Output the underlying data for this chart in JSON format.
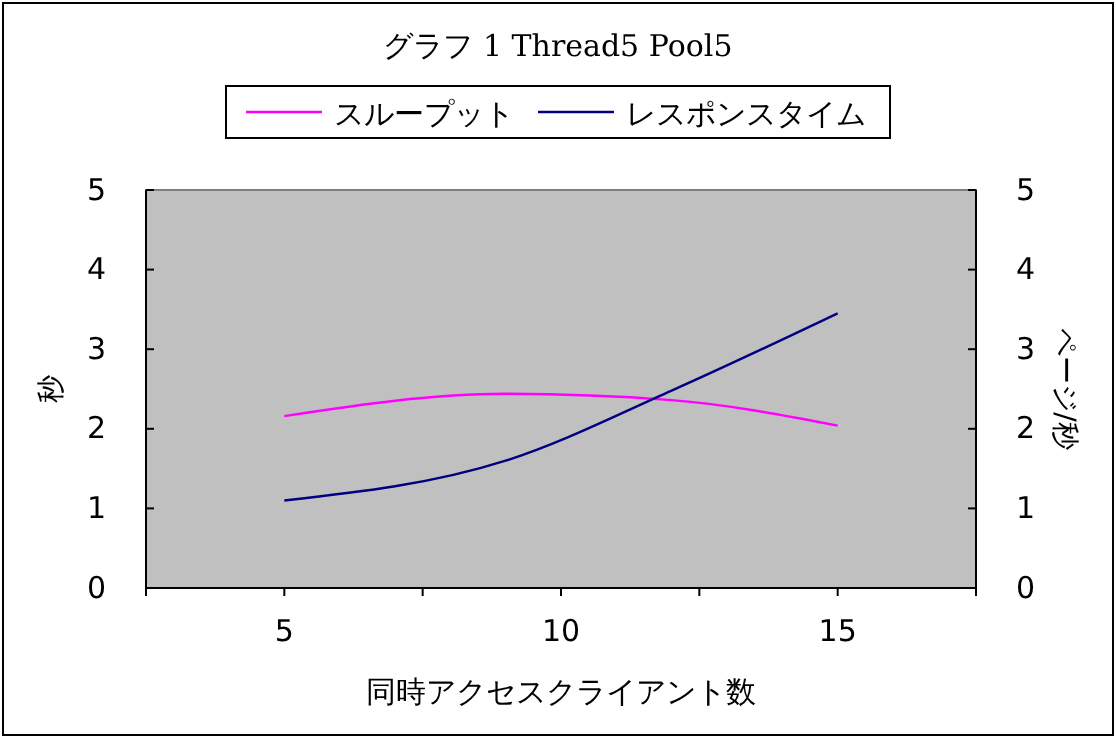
{
  "chart_data": {
    "type": "line",
    "title": "グラフ 1 Thread5 Pool5",
    "xlabel": "同時アクセスクライアント数",
    "ylabel": "秒",
    "y2label": "ページ/秒",
    "x": [
      5,
      9,
      12,
      15
    ],
    "series": [
      {
        "name": "スループット",
        "color": "#ff00ff",
        "values": [
          2.16,
          2.44,
          2.36,
          2.04
        ]
      },
      {
        "name": "レスポンスタイム",
        "color": "#000080",
        "values": [
          1.1,
          1.6,
          2.48,
          3.45
        ]
      }
    ],
    "xlim": [
      2.5,
      17.5
    ],
    "xticks": [
      {
        "value": 2.5,
        "label": null
      },
      5,
      {
        "value": 7.5,
        "label": null
      },
      10,
      {
        "value": 12.5,
        "label": null
      },
      15,
      {
        "value": 17.5,
        "label": null
      }
    ],
    "ylim": [
      0,
      5
    ],
    "yticks": [
      0,
      1,
      2,
      3,
      4,
      5
    ],
    "y2lim": [
      0,
      5
    ],
    "y2ticks": [
      0,
      1,
      2,
      3,
      4,
      5
    ],
    "legend": "top",
    "marker": "none",
    "line_style": "solid",
    "grid": false
  }
}
